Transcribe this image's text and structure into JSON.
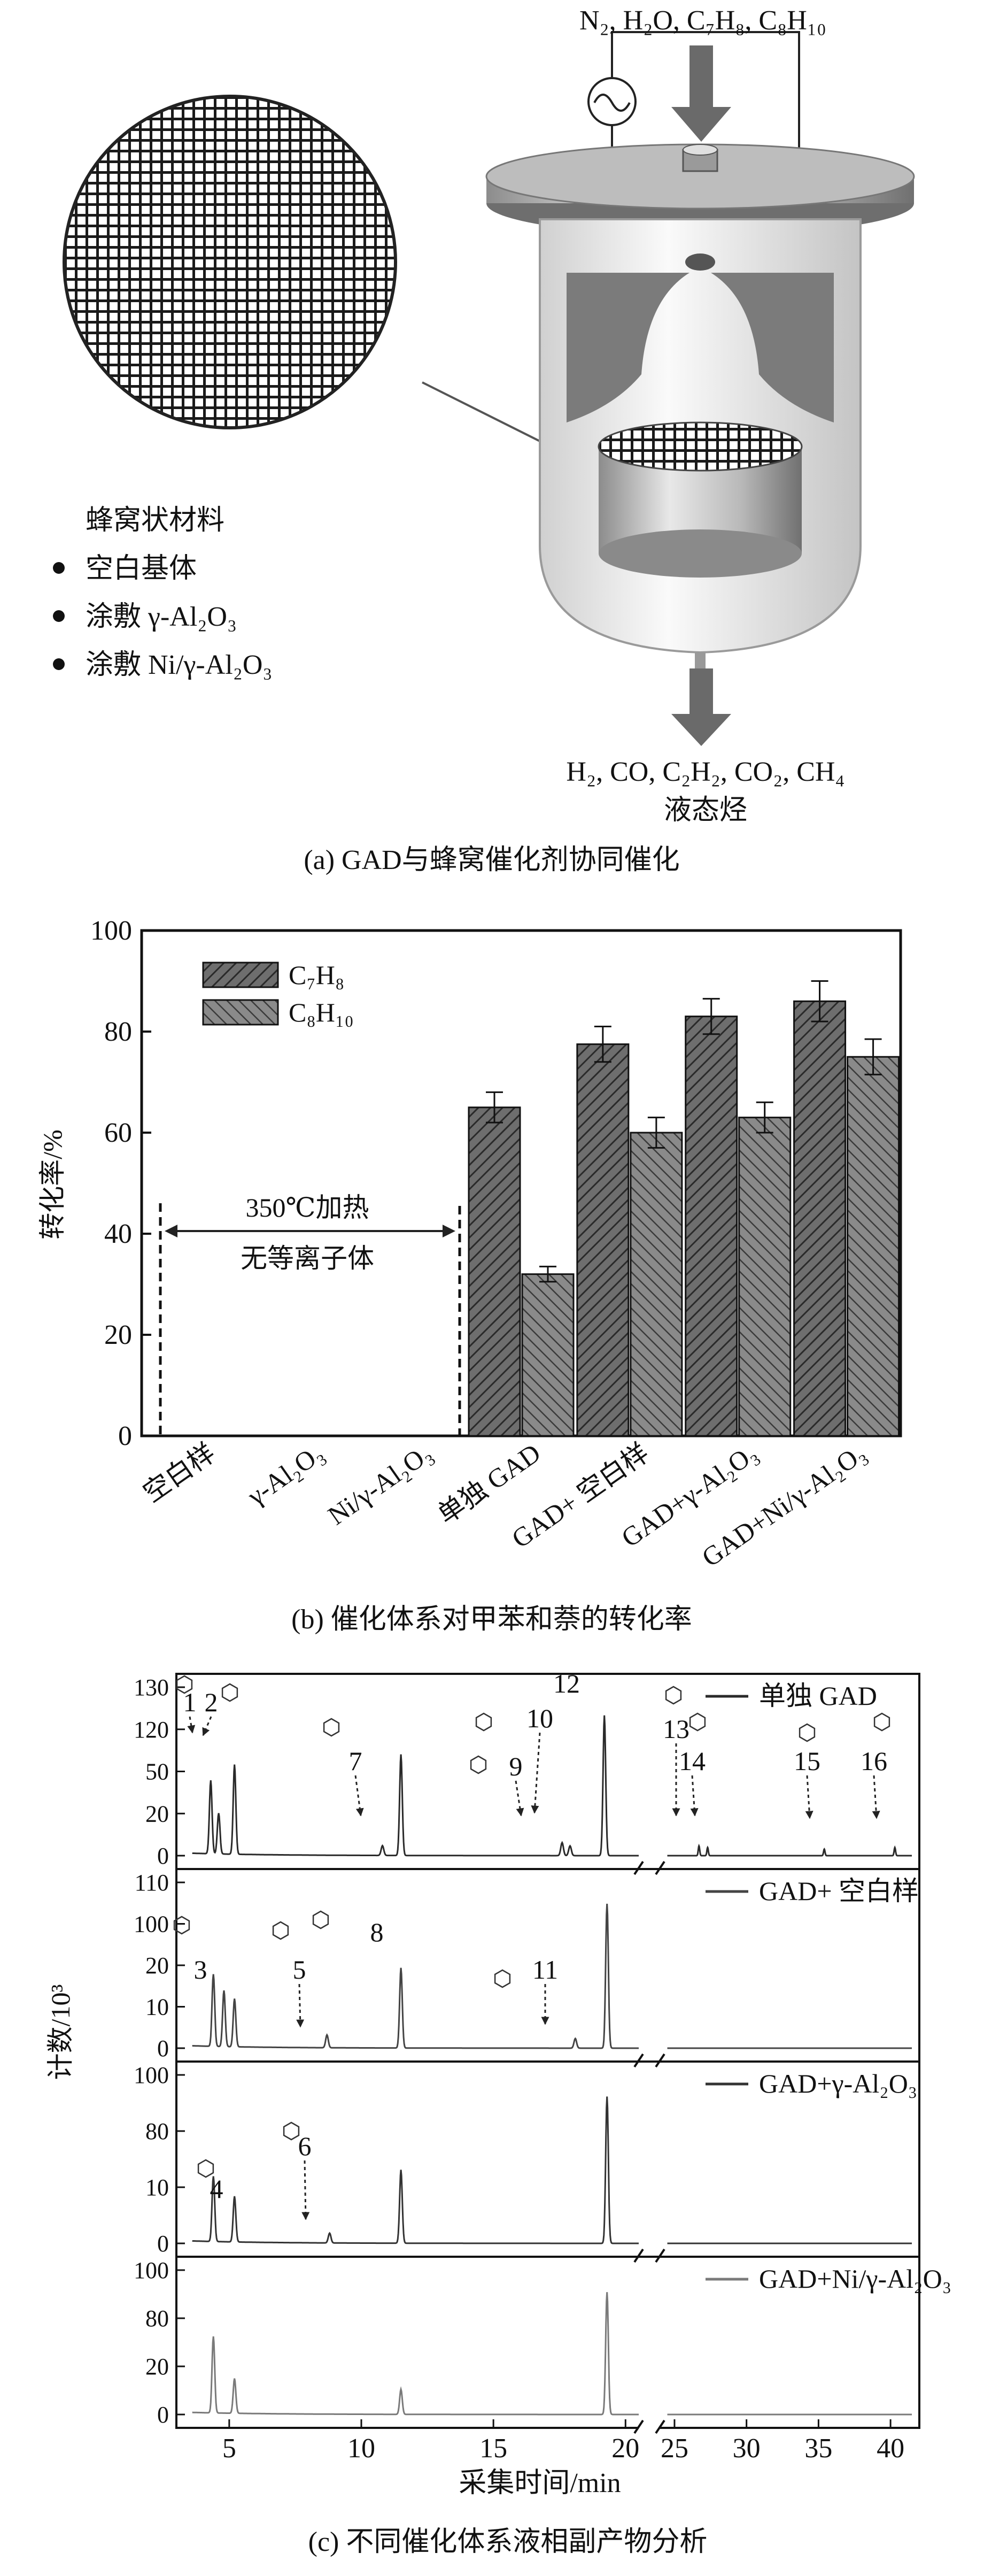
{
  "panel_a": {
    "inlet_gases": "N₂, H₂O, C₇H₈, C₈H₁₀",
    "outlet_gases": "H₂, CO, C₂H₂, CO₂, CH₄",
    "outlet_liquid": "液态烃",
    "material_title": "蜂窝状材料",
    "material_items": [
      "空白基体",
      "涂敷 γ-Al₂O₃",
      "涂敷 Ni/γ-Al₂O₃"
    ],
    "caption": "(a) GAD与蜂窝催化剂协同催化"
  },
  "panel_b": {
    "ylabel": "转化率/%",
    "annotation_line1": "350℃加热",
    "annotation_line2": "无等离子体",
    "caption": "(b) 催化体系对甲苯和萘的转化率"
  },
  "panel_c": {
    "ylabel": "计数/10³",
    "xlabel": "采集时间/min",
    "legends": [
      "单独 GAD",
      "GAD+ 空白样",
      "GAD+γ-Al₂O₃",
      "GAD+Ni/γ-Al₂O₃"
    ],
    "peak_labels": [
      "1",
      "2",
      "3",
      "4",
      "5",
      "6",
      "7",
      "8",
      "9",
      "10",
      "11",
      "12",
      "13",
      "14",
      "15",
      "16"
    ],
    "x_ticks_left": [
      "5",
      "10",
      "15",
      "20"
    ],
    "x_ticks_right": [
      "25",
      "30",
      "35",
      "40"
    ],
    "y_ticks": [
      [
        "0",
        "20",
        "50",
        "120",
        "130"
      ],
      [
        "0",
        "10",
        "20",
        "100",
        "110"
      ],
      [
        "0",
        "10",
        "80",
        "100"
      ],
      [
        "0",
        "20",
        "80",
        "100"
      ]
    ],
    "caption": "(c) 不同催化体系液相副产物分析"
  },
  "chart_data": {
    "type": "bar",
    "categories": [
      "空白样",
      "γ-Al₂O₃",
      "Ni/γ-Al₂O₃",
      "单独 GAD",
      "GAD+ 空白样",
      "GAD+γ-Al₂O₃",
      "GAD+Ni/γ-Al₂O₃"
    ],
    "series": [
      {
        "name": "C₇H₈",
        "values": [
          0,
          0,
          0,
          65,
          77.5,
          83,
          86
        ],
        "errors": [
          0,
          0,
          0,
          3,
          3.5,
          3.5,
          4
        ]
      },
      {
        "name": "C₈H₁₀",
        "values": [
          0,
          0,
          0,
          32,
          60,
          63,
          75
        ],
        "errors": [
          0,
          0,
          0,
          1.5,
          3,
          3,
          3.5
        ]
      }
    ],
    "ylim": [
      0,
      100
    ],
    "yticks": [
      0,
      20,
      40,
      60,
      80,
      100
    ],
    "legend_placement": "top-left",
    "grid": false
  }
}
